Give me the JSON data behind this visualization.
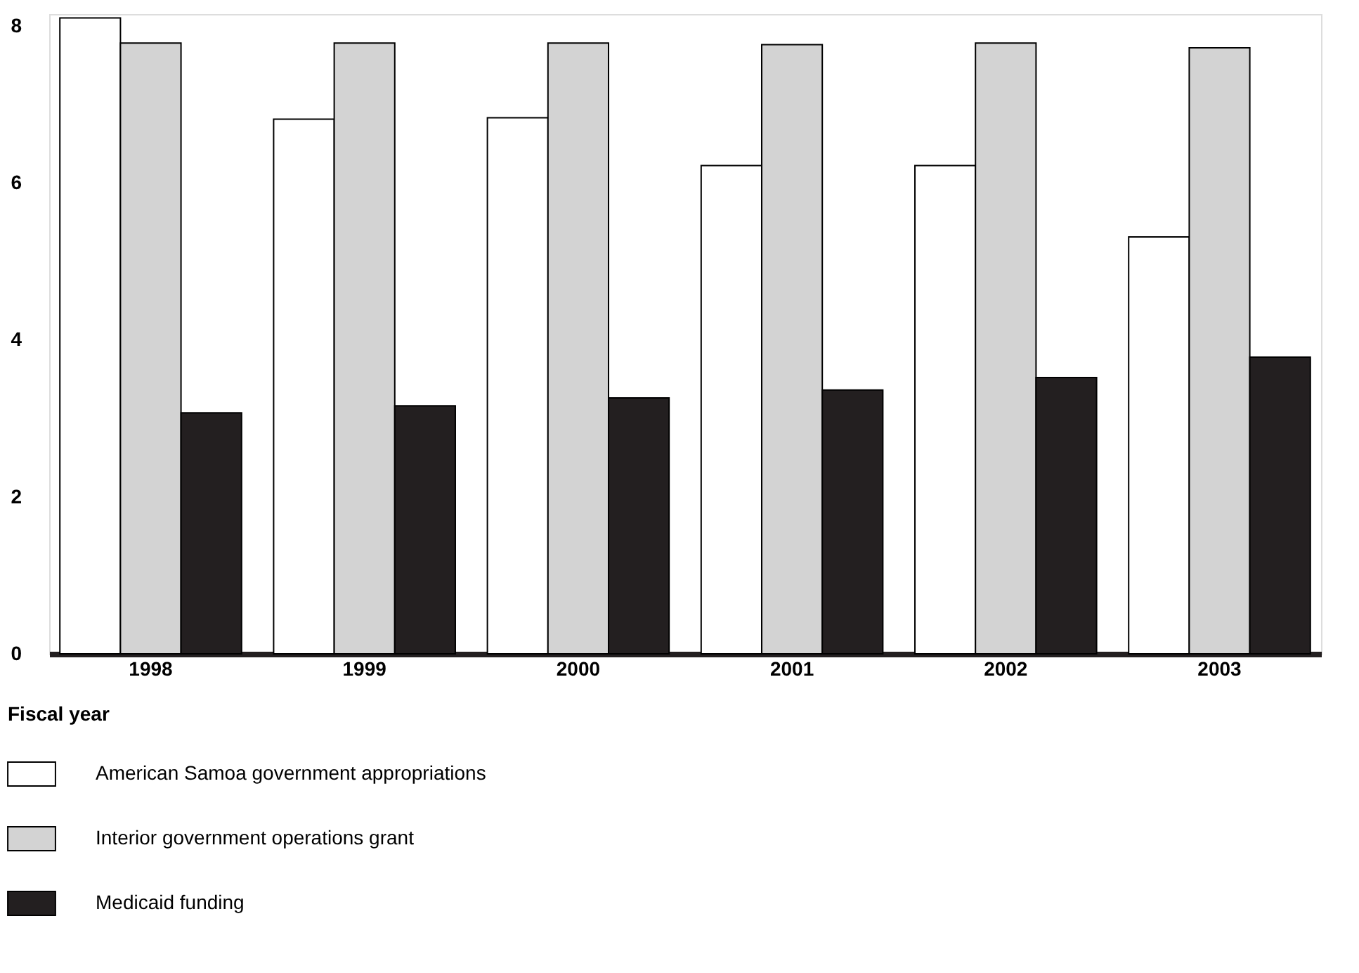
{
  "chart_data": {
    "type": "bar",
    "xlabel": "Fiscal year",
    "categories": [
      "1998",
      "1999",
      "2000",
      "2001",
      "2002",
      "2003"
    ],
    "series": [
      {
        "name": "American Samoa government appropriations",
        "color": "#ffffff",
        "values": [
          8.1,
          6.81,
          6.83,
          6.22,
          6.22,
          5.31
        ]
      },
      {
        "name": "Interior government operations grant",
        "color": "#d3d3d3",
        "values": [
          7.78,
          7.78,
          7.78,
          7.76,
          7.78,
          7.72
        ]
      },
      {
        "name": "Medicaid funding",
        "color": "#231f20",
        "values": [
          3.07,
          3.16,
          3.26,
          3.36,
          3.52,
          3.78
        ]
      }
    ],
    "ylim": [
      0,
      8.15
    ],
    "yticks": [
      0,
      2,
      4,
      6,
      8
    ],
    "grid": false,
    "legend": "bottom left"
  }
}
